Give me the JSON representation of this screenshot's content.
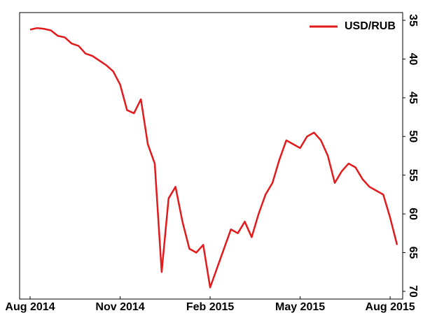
{
  "chart_data": {
    "type": "line",
    "categories": [
      "Aug 2014",
      null,
      null,
      null,
      null,
      null,
      null,
      null,
      null,
      null,
      null,
      null,
      null,
      "Nov 2014",
      null,
      null,
      null,
      null,
      null,
      null,
      null,
      null,
      null,
      null,
      null,
      null,
      "Feb 2015",
      null,
      null,
      null,
      null,
      null,
      null,
      null,
      null,
      null,
      null,
      null,
      null,
      "May 2015",
      null,
      null,
      null,
      null,
      null,
      null,
      null,
      null,
      null,
      null,
      null,
      null,
      "Aug 2015",
      null
    ],
    "series": [
      {
        "name": "USD/RUB",
        "color": "#e31a1c",
        "values": [
          36.2,
          36.0,
          36.1,
          36.3,
          37.0,
          37.2,
          38.0,
          38.3,
          39.3,
          39.6,
          40.2,
          40.8,
          41.6,
          43.3,
          46.6,
          47.0,
          45.2,
          51.0,
          53.5,
          67.5,
          58.0,
          56.5,
          61.0,
          64.5,
          65.0,
          64.0,
          69.5,
          67.0,
          64.5,
          62.0,
          62.5,
          61.0,
          63.0,
          60.0,
          57.5,
          56.0,
          53.0,
          50.5,
          51.0,
          51.5,
          50.0,
          49.5,
          50.5,
          52.5,
          56.0,
          54.5,
          53.5,
          54.0,
          55.5,
          56.5,
          57.0,
          57.5,
          60.5,
          64.0
        ]
      }
    ],
    "ylim": [
      34,
      71
    ],
    "y_inverted": true,
    "y_axis_side": "right",
    "yticks": [
      35,
      40,
      45,
      50,
      55,
      60,
      65,
      70
    ],
    "legend": "upper right",
    "grid": false
  }
}
